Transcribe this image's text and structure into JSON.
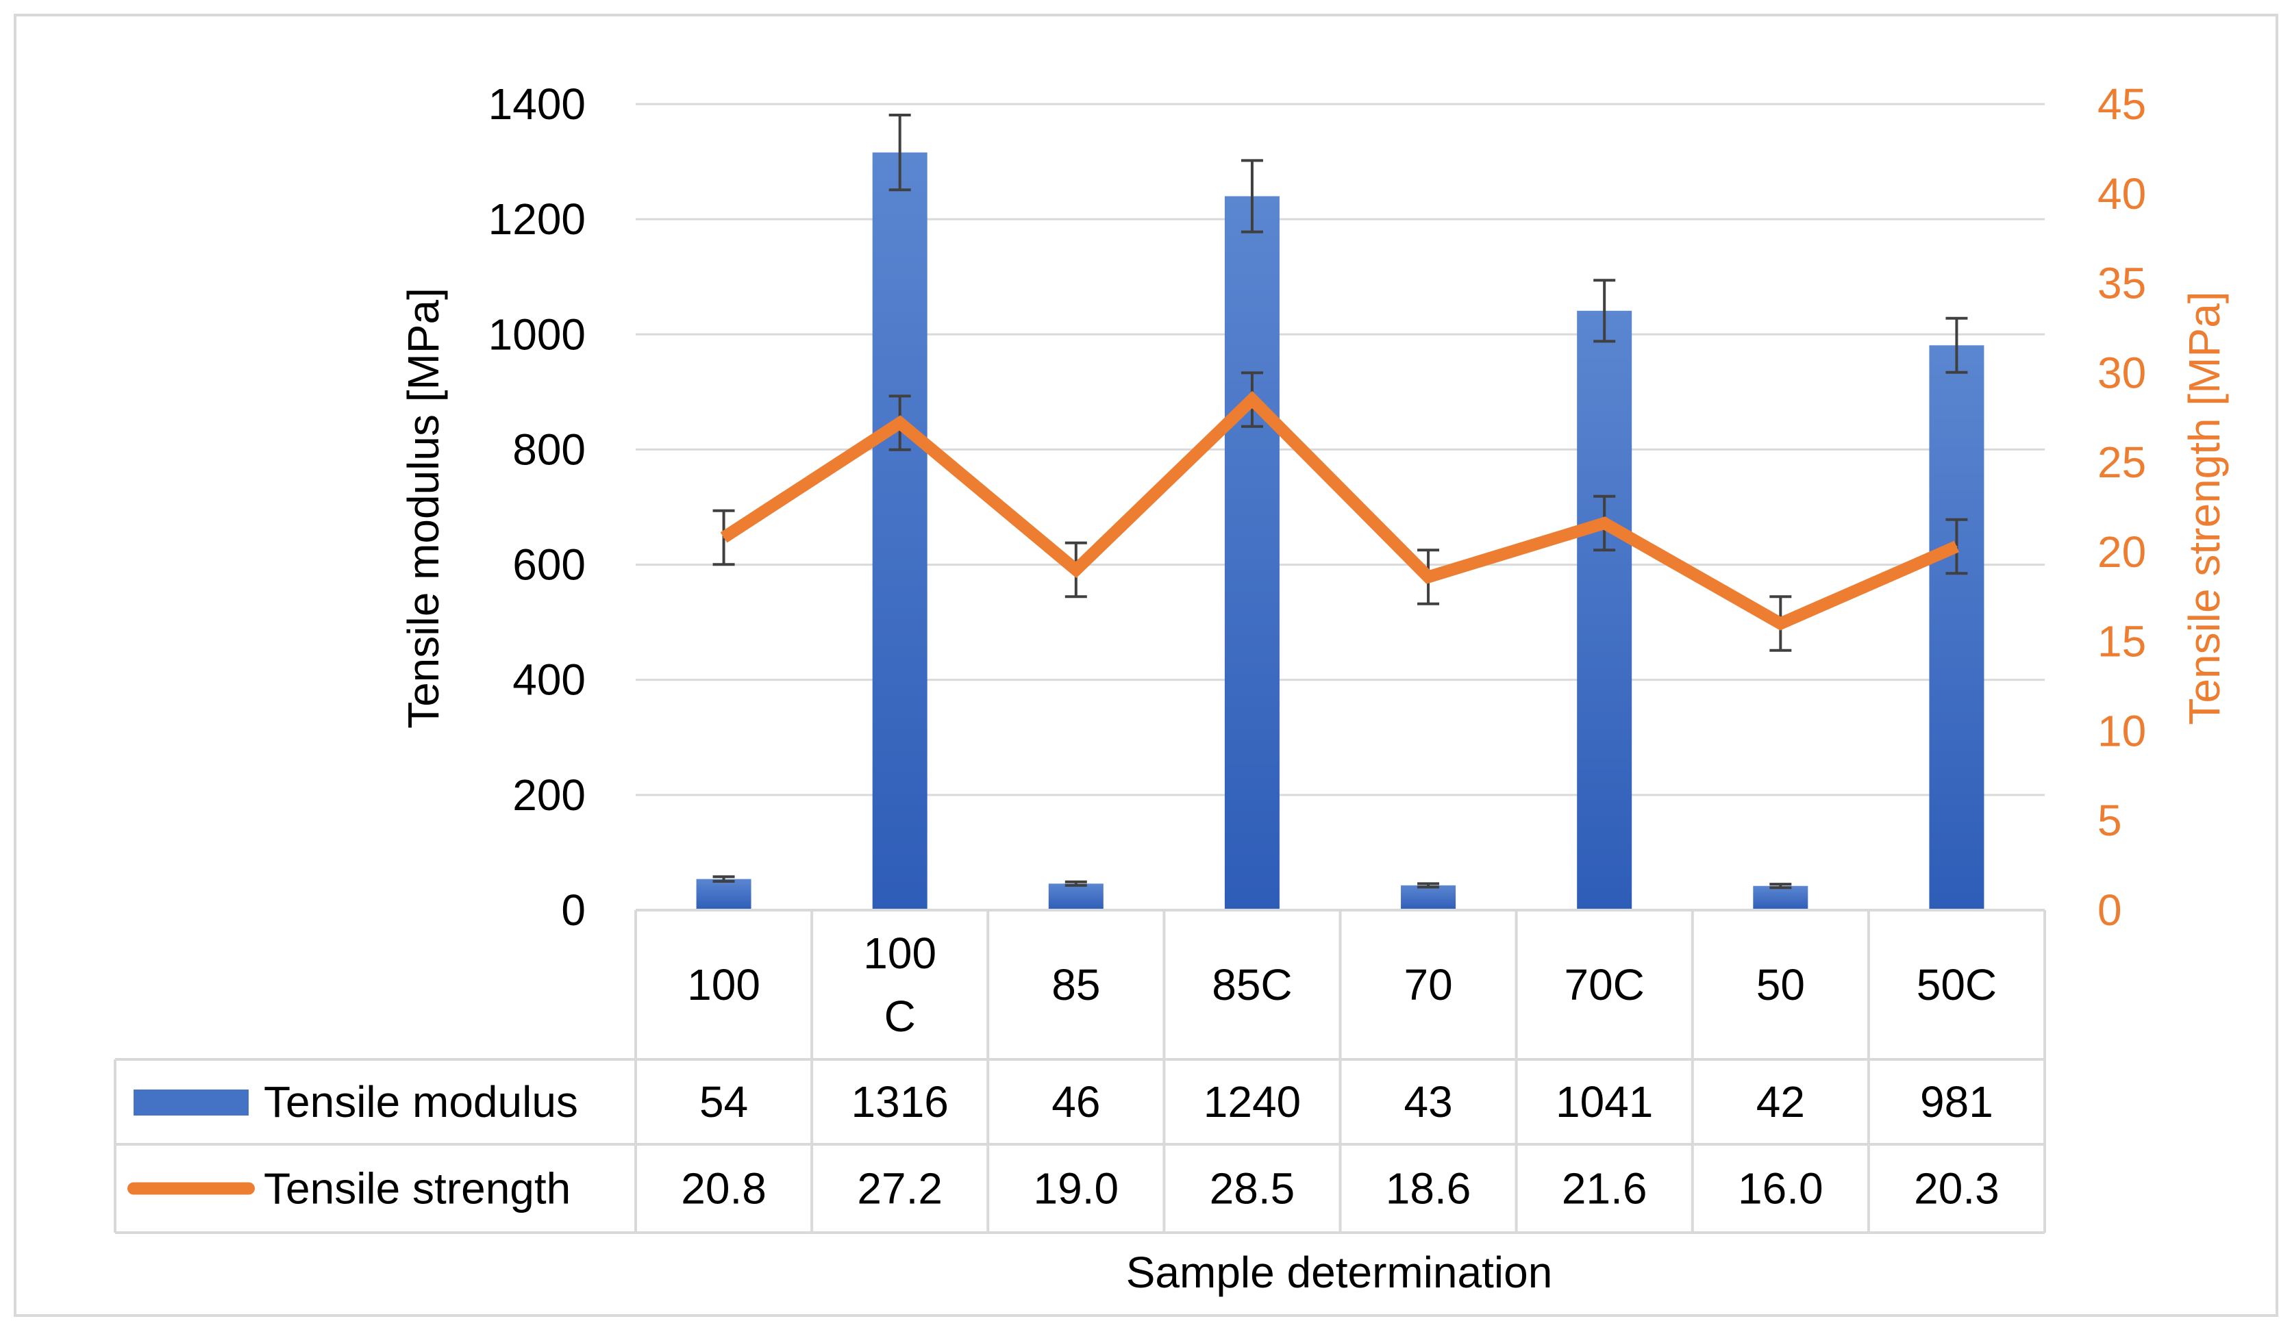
{
  "chart_data": {
    "type": "bar",
    "title": "",
    "xlabel": "Sample determination",
    "categories": [
      "100",
      "100C",
      "85",
      "85C",
      "70",
      "70C",
      "50",
      "50C"
    ],
    "category_display": [
      [
        "100"
      ],
      [
        "100",
        "C"
      ],
      [
        "85"
      ],
      [
        "85C"
      ],
      [
        "70"
      ],
      [
        "70C"
      ],
      [
        "50"
      ],
      [
        "50C"
      ]
    ],
    "series": [
      {
        "name": "Tensile modulus",
        "type": "bar",
        "axis": "left",
        "color": "#4472C4",
        "values": [
          54,
          1316,
          46,
          1240,
          43,
          1041,
          42,
          981
        ],
        "labels": [
          "54",
          "1316",
          "46",
          "1240",
          "43",
          "1041",
          "42",
          "981"
        ],
        "error": [
          4,
          65,
          3,
          62,
          3,
          53,
          3,
          47
        ]
      },
      {
        "name": "Tensile strength",
        "type": "line",
        "axis": "right",
        "color": "#ED7D31",
        "values": [
          20.8,
          27.2,
          19.0,
          28.5,
          18.6,
          21.6,
          16.0,
          20.3
        ],
        "labels": [
          "20.8",
          "27.2",
          "19.0",
          "28.5",
          "18.6",
          "21.6",
          "16.0",
          "20.3"
        ],
        "error": [
          1.5,
          1.5,
          1.5,
          1.5,
          1.5,
          1.5,
          1.5,
          1.5
        ]
      }
    ],
    "y_left": {
      "label": "Tensile modulus [MPa]",
      "range": [
        0,
        1400
      ],
      "ticks": [
        0,
        200,
        400,
        600,
        800,
        1000,
        1200,
        1400
      ],
      "tick_labels": [
        "0",
        "200",
        "400",
        "600",
        "800",
        "1000",
        "1200",
        "1400"
      ]
    },
    "y_right": {
      "label": "Tensile strength [MPa]",
      "range": [
        0,
        45
      ],
      "ticks": [
        0,
        5,
        10,
        15,
        20,
        25,
        30,
        35,
        40,
        45
      ],
      "tick_labels": [
        "0",
        "5",
        "10",
        "15",
        "20",
        "25",
        "30",
        "35",
        "40",
        "45"
      ],
      "color": "#ED7D31"
    },
    "grid": true,
    "data_table": true
  }
}
